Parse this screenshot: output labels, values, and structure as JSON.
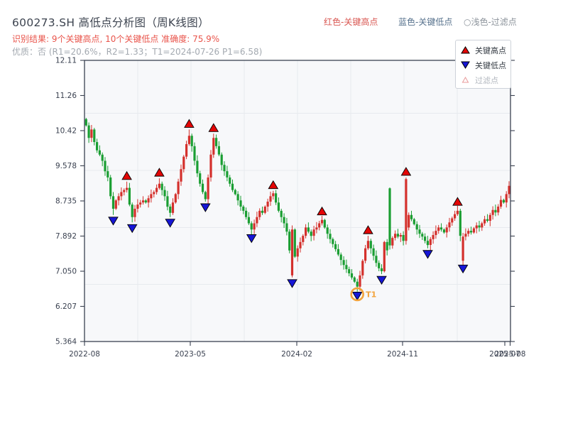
{
  "header": {
    "title": "600273.SH 高低点分析图（周K线图）",
    "recognition_result": "识别结果: 9个关键高点, 10个关键低点  准确度: 75.9%",
    "quality_line": "优质：否 (R1=20.6%，R2=1.33；T1=2024-07-26 P1=6.58)",
    "legend": {
      "high_label": "红色-关键高点",
      "low_label": "蓝色-关键低点",
      "filter_label": "○浅色-过滤点"
    }
  },
  "chart_legend": {
    "high": "关键高点",
    "low": "关键低点",
    "filter": "过滤点"
  },
  "chart_data": {
    "type": "candlestick",
    "title": "600273.SH 高低点分析图（周K线图）",
    "period": "周K线",
    "ylim": [
      5.364,
      12.11
    ],
    "y_tick_labels": [
      "12.11",
      "11.26",
      "10.42",
      "9.578",
      "8.735",
      "7.892",
      "7.050",
      "6.207",
      "5.364"
    ],
    "x_tick_labels": [
      "2022-08",
      "2023-05",
      "2024-02",
      "2024-11",
      "2025-07",
      "2025-08"
    ],
    "legend_position": "upper right",
    "grid": true,
    "closes": [
      10.55,
      10.25,
      10.45,
      10.15,
      9.95,
      9.85,
      9.7,
      9.45,
      9.3,
      8.85,
      8.55,
      8.75,
      8.85,
      8.95,
      9.0,
      9.05,
      8.65,
      8.35,
      8.55,
      8.65,
      8.7,
      8.75,
      8.7,
      8.8,
      8.9,
      8.95,
      9.05,
      9.15,
      9.0,
      8.85,
      8.6,
      8.45,
      8.7,
      8.9,
      9.2,
      9.5,
      9.8,
      10.1,
      10.3,
      10.05,
      9.7,
      9.4,
      9.15,
      8.95,
      8.78,
      9.3,
      9.85,
      10.25,
      10.05,
      9.85,
      9.6,
      9.45,
      9.3,
      9.15,
      9.0,
      8.9,
      8.75,
      8.6,
      8.5,
      8.35,
      8.2,
      8.05,
      8.2,
      8.35,
      8.5,
      8.45,
      8.6,
      8.72,
      8.85,
      8.92,
      8.7,
      8.5,
      8.35,
      8.2,
      8.0,
      7.55,
      8.05,
      7.4,
      7.6,
      7.75,
      7.9,
      8.1,
      8.0,
      7.9,
      8.05,
      8.1,
      8.2,
      8.28,
      8.1,
      7.95,
      7.82,
      7.7,
      7.58,
      7.45,
      7.32,
      7.2,
      7.1,
      7.0,
      6.9,
      6.8,
      6.68,
      6.95,
      7.3,
      7.6,
      7.78,
      7.6,
      7.42,
      7.25,
      7.12,
      7.05,
      7.75,
      7.55,
      7.67,
      7.85,
      7.95,
      7.88,
      7.92,
      7.78,
      9.26,
      8.4,
      8.3,
      8.18,
      8.05,
      7.95,
      7.88,
      7.78,
      7.68,
      7.82,
      7.92,
      8.02,
      8.1,
      8.05,
      7.98,
      8.1,
      8.22,
      8.32,
      8.42,
      8.5,
      7.9,
      7.88,
      7.95,
      8.02,
      7.98,
      8.08,
      8.15,
      8.1,
      8.2,
      8.3,
      8.26,
      8.4,
      8.52,
      8.46,
      8.6,
      8.76,
      8.7,
      8.9,
      9.1
    ],
    "open_overrides": {
      "0": 10.7,
      "76": 6.95,
      "112": 9.04,
      "119": 8.1,
      "139": 7.3
    },
    "high_overrides": {
      "112": 9.06,
      "118": 9.3
    },
    "low_overrides": {
      "76": 6.9
    },
    "key_highs": [
      [
        15,
        9.2
      ],
      [
        27,
        9.28
      ],
      [
        38,
        10.45
      ],
      [
        47,
        10.35
      ],
      [
        69,
        8.98
      ],
      [
        87,
        8.35
      ],
      [
        104,
        7.9
      ],
      [
        118,
        9.3
      ],
      [
        137,
        8.58
      ]
    ],
    "key_lows": [
      [
        10,
        8.4
      ],
      [
        17,
        8.22
      ],
      [
        31,
        8.35
      ],
      [
        44,
        8.72
      ],
      [
        61,
        7.98
      ],
      [
        76,
        6.9
      ],
      [
        100,
        6.6
      ],
      [
        109,
        6.98
      ],
      [
        126,
        7.6
      ],
      [
        139,
        7.25
      ]
    ],
    "t1": {
      "index": 100,
      "label": "T1",
      "date": "2024-07-26",
      "price": 6.58
    },
    "colors": {
      "up_candle": "#d4302c",
      "down_candle": "#1a9e32",
      "key_high_marker": "#e30505",
      "key_low_marker": "#1616d6",
      "t1_ring": "#f2a33c",
      "red_text": "#e9544b",
      "axis_text": "#3a4150"
    }
  }
}
